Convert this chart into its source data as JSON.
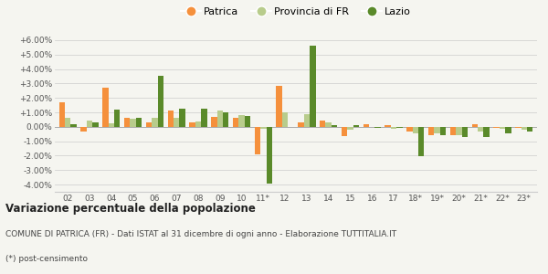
{
  "years": [
    "02",
    "03",
    "04",
    "05",
    "06",
    "07",
    "08",
    "09",
    "10",
    "11*",
    "12",
    "13",
    "14",
    "15",
    "16",
    "17",
    "18*",
    "19*",
    "20*",
    "21*",
    "22*",
    "23*"
  ],
  "patrica": [
    1.7,
    -0.3,
    2.7,
    0.6,
    0.3,
    1.1,
    0.3,
    0.7,
    0.6,
    -1.9,
    2.85,
    0.3,
    0.45,
    -0.65,
    0.15,
    0.1,
    -0.3,
    -0.55,
    -0.55,
    0.2,
    -0.1,
    -0.1
  ],
  "provincia": [
    0.6,
    0.4,
    0.25,
    0.55,
    0.65,
    0.6,
    0.35,
    1.1,
    0.8,
    -0.15,
    1.0,
    0.85,
    0.3,
    -0.2,
    0.0,
    -0.15,
    -0.45,
    -0.45,
    -0.55,
    -0.35,
    -0.15,
    -0.2
  ],
  "lazio": [
    0.15,
    0.3,
    1.2,
    0.6,
    3.55,
    1.25,
    1.25,
    1.0,
    0.75,
    -3.9,
    0.0,
    5.6,
    0.1,
    0.1,
    -0.1,
    -0.1,
    -2.05,
    -0.55,
    -0.7,
    -0.7,
    -0.45,
    -0.35
  ],
  "patrica_color": "#f5903c",
  "provincia_color": "#b8cc8c",
  "lazio_color": "#5a8a2a",
  "bg_color": "#f5f5f0",
  "title_bold": "Variazione percentuale della popolazione",
  "subtitle": "COMUNE DI PATRICA (FR) - Dati ISTAT al 31 dicembre di ogni anno - Elaborazione TUTTITALIA.IT",
  "footnote": "(*) post-censimento",
  "ylim": [
    -4.5,
    6.5
  ],
  "yticks": [
    -4.0,
    -3.0,
    -2.0,
    -1.0,
    0.0,
    1.0,
    2.0,
    3.0,
    4.0,
    5.0,
    6.0
  ]
}
